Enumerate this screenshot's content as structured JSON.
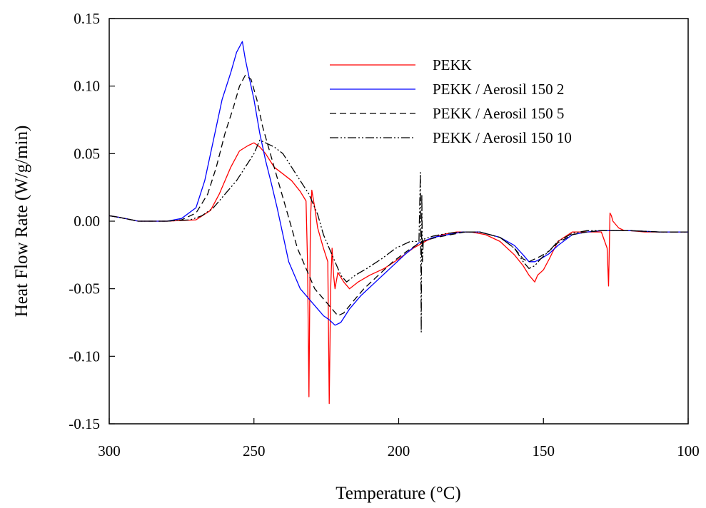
{
  "chart_data": {
    "type": "line",
    "title": "",
    "xlabel": "Temperature (°C)",
    "ylabel": "Heat Flow Rate (W/g/min)",
    "xlim": [
      300,
      100
    ],
    "ylim": [
      -0.15,
      0.15
    ],
    "x_reversed": true,
    "x_ticks": [
      300,
      250,
      200,
      150,
      100
    ],
    "x_tick_labels": [
      "300",
      "250",
      "200",
      "150",
      "100"
    ],
    "y_ticks": [
      -0.15,
      -0.1,
      -0.05,
      0.0,
      0.05,
      0.1,
      0.15
    ],
    "y_tick_labels": [
      "-0.15",
      "-0.10",
      "-0.05",
      "0.00",
      "0.05",
      "0.10",
      "0.15"
    ],
    "grid": false,
    "legend_position": "top-right",
    "series": [
      {
        "name": "PEKK",
        "color": "#ff0000",
        "dash": "solid",
        "x": [
          300,
          297,
          290,
          280,
          270,
          265,
          262,
          258,
          255,
          252,
          250,
          248,
          246,
          243,
          240,
          237,
          234,
          232,
          231.5,
          231,
          230.5,
          230,
          229,
          228,
          226,
          224.5,
          224,
          223.5,
          223,
          222.5,
          222,
          221,
          219,
          217,
          214,
          210,
          205,
          200,
          195,
          190,
          185,
          180,
          175,
          170,
          165,
          160,
          157,
          155,
          153,
          152,
          150,
          148,
          145,
          140,
          135,
          130,
          128,
          127.5,
          127,
          126.5,
          126,
          124,
          122,
          120,
          115,
          110,
          105,
          100
        ],
        "y": [
          0.004,
          0.003,
          0.0,
          0.0,
          0.001,
          0.008,
          0.02,
          0.04,
          0.052,
          0.056,
          0.058,
          0.055,
          0.05,
          0.04,
          0.035,
          0.03,
          0.022,
          0.015,
          -0.03,
          -0.13,
          0.0,
          0.023,
          0.01,
          -0.005,
          -0.02,
          -0.03,
          -0.135,
          -0.05,
          -0.02,
          -0.04,
          -0.05,
          -0.038,
          -0.045,
          -0.05,
          -0.045,
          -0.04,
          -0.035,
          -0.028,
          -0.02,
          -0.014,
          -0.01,
          -0.008,
          -0.008,
          -0.01,
          -0.015,
          -0.025,
          -0.033,
          -0.04,
          -0.045,
          -0.04,
          -0.036,
          -0.028,
          -0.015,
          -0.008,
          -0.008,
          -0.008,
          -0.02,
          -0.048,
          0.006,
          0.004,
          0.0,
          -0.005,
          -0.007,
          -0.007,
          -0.008,
          -0.008,
          -0.008,
          -0.008
        ]
      },
      {
        "name": "PEKK / Aerosil 150 2",
        "color": "#0000ff",
        "dash": "solid",
        "x": [
          300,
          297,
          290,
          280,
          275,
          270,
          267,
          264,
          261,
          258,
          256,
          254,
          253,
          252,
          250,
          248,
          246,
          244,
          242,
          240,
          238,
          236,
          234,
          232,
          230,
          228,
          226,
          224,
          222,
          220,
          217,
          213,
          208,
          203,
          198,
          193,
          188,
          183,
          178,
          172,
          165,
          160,
          157,
          155,
          153,
          151,
          148,
          145,
          140,
          135,
          130,
          125,
          120,
          110,
          100
        ],
        "y": [
          0.004,
          0.003,
          0.0,
          0.0,
          0.002,
          0.01,
          0.03,
          0.06,
          0.09,
          0.11,
          0.125,
          0.133,
          0.12,
          0.11,
          0.09,
          0.065,
          0.045,
          0.028,
          0.01,
          -0.01,
          -0.03,
          -0.04,
          -0.05,
          -0.055,
          -0.06,
          -0.065,
          -0.07,
          -0.073,
          -0.077,
          -0.075,
          -0.065,
          -0.055,
          -0.045,
          -0.035,
          -0.025,
          -0.016,
          -0.012,
          -0.01,
          -0.008,
          -0.008,
          -0.012,
          -0.018,
          -0.025,
          -0.03,
          -0.03,
          -0.028,
          -0.024,
          -0.018,
          -0.01,
          -0.008,
          -0.007,
          -0.007,
          -0.007,
          -0.008,
          -0.008
        ]
      },
      {
        "name": "PEKK / Aerosil 150 5",
        "color": "#000000",
        "dash": "dashed",
        "x": [
          300,
          297,
          290,
          280,
          275,
          270,
          266,
          263,
          260,
          257,
          255,
          253,
          251,
          249,
          247,
          245,
          243,
          241,
          239,
          237,
          235,
          233,
          231,
          229,
          227,
          225,
          223,
          221,
          219,
          216,
          212,
          207,
          202,
          197,
          192,
          187,
          182,
          177,
          172,
          165,
          160,
          157,
          155,
          153,
          151,
          148,
          145,
          140,
          135,
          130,
          125,
          120,
          110,
          100
        ],
        "y": [
          0.004,
          0.003,
          0.0,
          0.0,
          0.001,
          0.006,
          0.02,
          0.04,
          0.065,
          0.085,
          0.1,
          0.108,
          0.105,
          0.09,
          0.07,
          0.055,
          0.04,
          0.025,
          0.01,
          -0.005,
          -0.02,
          -0.03,
          -0.04,
          -0.05,
          -0.055,
          -0.06,
          -0.065,
          -0.07,
          -0.068,
          -0.06,
          -0.05,
          -0.04,
          -0.03,
          -0.022,
          -0.015,
          -0.012,
          -0.01,
          -0.008,
          -0.008,
          -0.012,
          -0.02,
          -0.028,
          -0.03,
          -0.028,
          -0.026,
          -0.022,
          -0.016,
          -0.01,
          -0.008,
          -0.007,
          -0.007,
          -0.007,
          -0.008,
          -0.008
        ]
      },
      {
        "name": "PEKK / Aerosil 150 10",
        "color": "#000000",
        "dash": "dash-dot-dot",
        "x": [
          300,
          297,
          290,
          280,
          272,
          268,
          264,
          260,
          256,
          253,
          250,
          248,
          246,
          243,
          240,
          237,
          234,
          231,
          228,
          226,
          224,
          222,
          220,
          218,
          215,
          211,
          206,
          201,
          196,
          193,
          192.5,
          192.2,
          192,
          191.8,
          191.5,
          191,
          188,
          183,
          178,
          172,
          165,
          160,
          157,
          155,
          153,
          151,
          148,
          145,
          140,
          135,
          130,
          125,
          120,
          110,
          100
        ],
        "y": [
          0.004,
          0.003,
          0.0,
          0.0,
          0.001,
          0.004,
          0.01,
          0.02,
          0.03,
          0.04,
          0.05,
          0.06,
          0.058,
          0.055,
          0.05,
          0.04,
          0.03,
          0.02,
          0.005,
          -0.01,
          -0.02,
          -0.03,
          -0.04,
          -0.045,
          -0.04,
          -0.035,
          -0.028,
          -0.02,
          -0.015,
          -0.015,
          0.036,
          -0.082,
          0.02,
          -0.03,
          -0.014,
          -0.013,
          -0.011,
          -0.009,
          -0.008,
          -0.008,
          -0.012,
          -0.02,
          -0.03,
          -0.035,
          -0.033,
          -0.028,
          -0.022,
          -0.015,
          -0.009,
          -0.007,
          -0.007,
          -0.007,
          -0.007,
          -0.008,
          -0.008
        ]
      }
    ]
  }
}
